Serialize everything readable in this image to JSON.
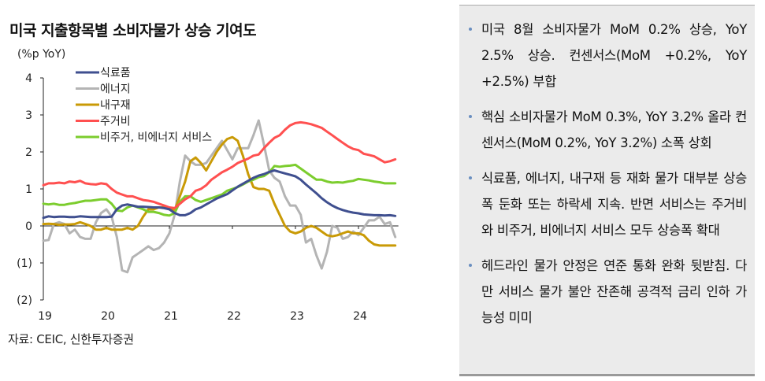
{
  "title": "미국 지출항목별 소비자물가 상승 기여도",
  "source": "자료: CEIC, 신한투자증권",
  "chart_data": {
    "type": "line",
    "ylabel": "(%p YoY)",
    "ylim": [
      -2,
      4
    ],
    "yticks": [
      4,
      3,
      2,
      1,
      0,
      -1,
      -2
    ],
    "ytick_labels": [
      "4",
      "3",
      "2",
      "1",
      "0",
      "(1)",
      "(2)"
    ],
    "xtick_labels": [
      "19",
      "20",
      "21",
      "22",
      "23",
      "24"
    ],
    "x_start": "2019-01",
    "x_end": "2024-08",
    "legend_position": "top-left",
    "grid": false,
    "series": [
      {
        "name": "식료품",
        "color": "#3f4f8f",
        "values": [
          0.22,
          0.26,
          0.24,
          0.25,
          0.25,
          0.24,
          0.24,
          0.26,
          0.25,
          0.24,
          0.24,
          0.24,
          0.24,
          0.25,
          0.45,
          0.55,
          0.58,
          0.55,
          0.52,
          0.52,
          0.51,
          0.5,
          0.5,
          0.48,
          0.45,
          0.35,
          0.29,
          0.29,
          0.35,
          0.45,
          0.5,
          0.58,
          0.66,
          0.74,
          0.8,
          0.86,
          0.96,
          1.06,
          1.14,
          1.22,
          1.3,
          1.36,
          1.4,
          1.46,
          1.5,
          1.46,
          1.42,
          1.38,
          1.34,
          1.25,
          1.12,
          1.0,
          0.88,
          0.75,
          0.64,
          0.55,
          0.48,
          0.43,
          0.39,
          0.36,
          0.34,
          0.31,
          0.3,
          0.29,
          0.29,
          0.28,
          0.29,
          0.27
        ]
      },
      {
        "name": "에너지",
        "color": "#b4b4b4",
        "values": [
          -0.4,
          -0.38,
          0.05,
          0.1,
          0.05,
          -0.2,
          -0.1,
          -0.3,
          -0.35,
          -0.35,
          0.1,
          0.35,
          0.45,
          0.25,
          -0.3,
          -1.2,
          -1.25,
          -0.85,
          -0.75,
          -0.65,
          -0.55,
          -0.65,
          -0.6,
          -0.45,
          -0.2,
          0.3,
          1.2,
          1.9,
          1.75,
          1.65,
          1.65,
          1.7,
          1.9,
          2.1,
          2.3,
          2.05,
          1.8,
          2.1,
          2.1,
          2.1,
          2.45,
          2.85,
          2.2,
          1.5,
          1.3,
          1.2,
          0.8,
          0.55,
          0.55,
          0.3,
          -0.45,
          -0.35,
          -0.8,
          -1.15,
          -0.7,
          0.0,
          -0.05,
          -0.35,
          -0.3,
          -0.15,
          -0.25,
          -0.05,
          0.15,
          0.15,
          0.25,
          0.05,
          0.1,
          -0.3
        ]
      },
      {
        "name": "내구재",
        "color": "#c99a06",
        "values": [
          0.05,
          0.06,
          0.05,
          0.03,
          0.04,
          0.04,
          0.05,
          0.1,
          0.05,
          0.0,
          -0.1,
          -0.1,
          -0.05,
          -0.1,
          -0.1,
          -0.1,
          -0.05,
          -0.1,
          0.0,
          0.25,
          0.45,
          0.45,
          0.5,
          0.5,
          0.45,
          0.42,
          0.8,
          1.2,
          1.75,
          1.85,
          1.7,
          1.5,
          1.75,
          2.0,
          2.2,
          2.35,
          2.4,
          2.3,
          1.9,
          1.4,
          1.05,
          1.0,
          1.0,
          0.95,
          0.6,
          0.3,
          0.0,
          -0.15,
          -0.2,
          -0.15,
          -0.05,
          0.0,
          -0.05,
          -0.15,
          -0.25,
          -0.28,
          -0.25,
          -0.2,
          -0.15,
          -0.2,
          -0.2,
          -0.25,
          -0.4,
          -0.5,
          -0.53,
          -0.53,
          -0.53,
          -0.53
        ]
      },
      {
        "name": "주거비",
        "color": "#ff5050",
        "values": [
          1.1,
          1.15,
          1.15,
          1.17,
          1.15,
          1.2,
          1.18,
          1.22,
          1.15,
          1.13,
          1.12,
          1.15,
          1.13,
          1.0,
          0.9,
          0.85,
          0.8,
          0.8,
          0.75,
          0.7,
          0.68,
          0.65,
          0.6,
          0.55,
          0.5,
          0.48,
          0.6,
          0.72,
          0.8,
          0.95,
          1.0,
          1.1,
          1.25,
          1.35,
          1.45,
          1.52,
          1.6,
          1.7,
          1.76,
          1.82,
          1.9,
          1.93,
          2.1,
          2.25,
          2.38,
          2.45,
          2.6,
          2.72,
          2.78,
          2.8,
          2.78,
          2.75,
          2.7,
          2.65,
          2.55,
          2.45,
          2.35,
          2.25,
          2.15,
          2.08,
          2.05,
          1.95,
          1.92,
          1.88,
          1.8,
          1.72,
          1.75,
          1.8
        ]
      },
      {
        "name": "비주거, 비에너지 서비스",
        "color": "#7ccd2e",
        "values": [
          0.6,
          0.58,
          0.6,
          0.57,
          0.57,
          0.6,
          0.62,
          0.65,
          0.68,
          0.68,
          0.7,
          0.72,
          0.72,
          0.6,
          0.42,
          0.4,
          0.5,
          0.55,
          0.5,
          0.45,
          0.38,
          0.38,
          0.35,
          0.3,
          0.28,
          0.35,
          0.65,
          0.8,
          0.8,
          0.7,
          0.65,
          0.7,
          0.75,
          0.8,
          0.85,
          0.95,
          1.0,
          1.05,
          1.12,
          1.2,
          1.25,
          1.32,
          1.35,
          1.45,
          1.62,
          1.6,
          1.62,
          1.63,
          1.65,
          1.55,
          1.45,
          1.35,
          1.25,
          1.25,
          1.2,
          1.17,
          1.18,
          1.17,
          1.2,
          1.22,
          1.27,
          1.25,
          1.23,
          1.2,
          1.18,
          1.15,
          1.15,
          1.15
        ]
      }
    ]
  },
  "panel": {
    "bullets": [
      "미국 8월 소비자물가 MoM 0.2% 상승, YoY 2.5% 상승. 컨센서스(MoM +0.2%, YoY +2.5%) 부합",
      "핵심 소비자물가 MoM 0.3%, YoY 3.2% 올라 컨센서스(MoM 0.2%, YoY 3.2%) 소폭 상회",
      "식료품, 에너지, 내구재 등 재화 물가 대부분 상승폭 둔화 또는 하락세 지속. 반면 서비스는 주거비와 비주거, 비에너지 서비스 모두 상승폭 확대",
      "헤드라인 물가 안정은 연준 통화 완화 뒷받침. 다만 서비스 물가 불안 잔존해 공격적 금리 인하 가능성 미미"
    ]
  }
}
